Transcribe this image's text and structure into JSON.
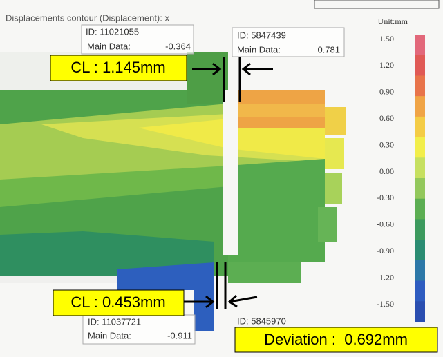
{
  "view": {
    "title": "Displacements contour (Displacement): x"
  },
  "probes": [
    {
      "id": "ID: 11021055",
      "label": "Main Data:",
      "value": "-0.364"
    },
    {
      "id": "ID: 5847439",
      "label": "Main Data:",
      "value": "0.781"
    },
    {
      "id": "ID: 11037721",
      "label": "Main Data:",
      "value": "-0.911"
    },
    {
      "id": "ID: 5845970"
    }
  ],
  "annotations": {
    "upper": "CL : 1.145mm",
    "lower": "CL : 0.453mm",
    "deviation": "Deviation :  0.692mm"
  },
  "legend": {
    "unit": "Unit:mm",
    "levels": [
      "1.50",
      "1.20",
      "0.90",
      "0.60",
      "0.30",
      "0.00",
      "-0.30",
      "-0.60",
      "-0.90",
      "-1.20",
      "-1.50"
    ],
    "colors": [
      "#e2687a",
      "#e05a55",
      "#e8744a",
      "#f0a445",
      "#f4cc45",
      "#f2ee4a",
      "#c6e060",
      "#93c85c",
      "#5cae52",
      "#3c9a5e",
      "#2a8c72",
      "#2c78a8",
      "#2e5cc0",
      "#2a4eb0"
    ]
  }
}
